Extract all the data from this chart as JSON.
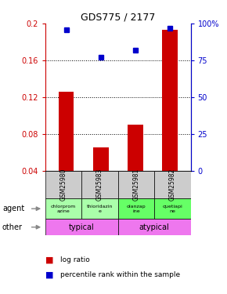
{
  "title": "GDS775 / 2177",
  "samples": [
    "GSM25980",
    "GSM25983",
    "GSM25981",
    "GSM25982"
  ],
  "log_ratios": [
    0.126,
    0.065,
    0.09,
    0.193
  ],
  "percentile_ranks": [
    0.96,
    0.77,
    0.82,
    0.97
  ],
  "y_min": 0.04,
  "y_max": 0.2,
  "y_ticks_left": [
    0.04,
    0.08,
    0.12,
    0.16,
    0.2
  ],
  "y_ticks_right": [
    0,
    25,
    50,
    75,
    100
  ],
  "bar_color": "#cc0000",
  "dot_color": "#0000cc",
  "agent_labels": [
    "chlorprom\nazine",
    "thioridazin\ne",
    "olanzap\nine",
    "quetiapi\nne"
  ],
  "agent_colors": [
    "#aaffaa",
    "#aaffaa",
    "#66ff66",
    "#66ff66"
  ],
  "other_color": "#ee77ee",
  "sample_bg_color": "#cccccc",
  "legend_log_ratio": "log ratio",
  "legend_percentile": "percentile rank within the sample",
  "grid_dotted": [
    0.08,
    0.12,
    0.16
  ]
}
